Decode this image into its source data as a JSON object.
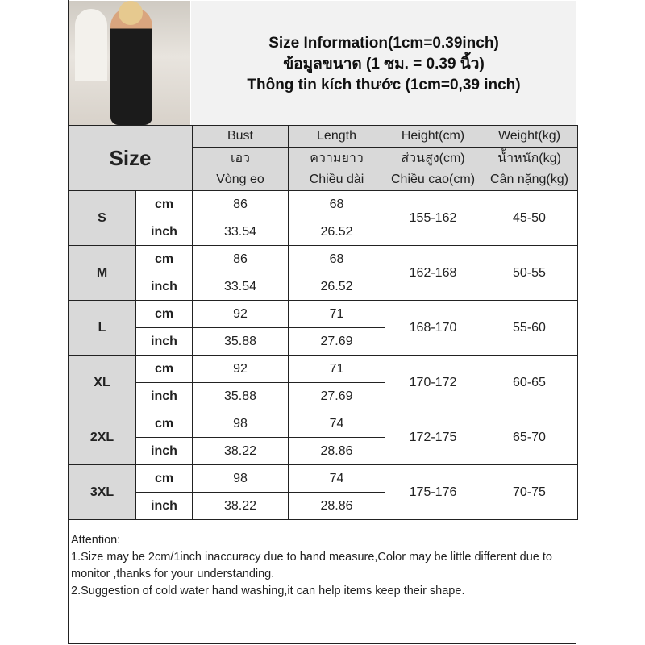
{
  "title": {
    "line1": "Size Information(1cm=0.39inch)",
    "line2": "ข้อมูลขนาด (1 ซม. = 0.39 นิ้ว)",
    "line3": "Thông tin kích thước (1cm=0,39 inch)"
  },
  "size_label": "Size",
  "headers": [
    [
      "Bust",
      "เอว",
      "Vòng eo"
    ],
    [
      "Length",
      "ความยาว",
      "Chiều dài"
    ],
    [
      "Height(cm)",
      "ส่วนสูง(cm)",
      "Chiều cao(cm)"
    ],
    [
      "Weight(kg)",
      "น้ำหนัก(kg)",
      "Cân nặng(kg)"
    ]
  ],
  "units": {
    "cm": "cm",
    "inch": "inch"
  },
  "rows": [
    {
      "size": "S",
      "bust_cm": "86",
      "length_cm": "68",
      "bust_in": "33.54",
      "length_in": "26.52",
      "height": "155-162",
      "weight": "45-50"
    },
    {
      "size": "M",
      "bust_cm": "86",
      "length_cm": "68",
      "bust_in": "33.54",
      "length_in": "26.52",
      "height": "162-168",
      "weight": "50-55"
    },
    {
      "size": "L",
      "bust_cm": "92",
      "length_cm": "71",
      "bust_in": "35.88",
      "length_in": "27.69",
      "height": "168-170",
      "weight": "55-60"
    },
    {
      "size": "XL",
      "bust_cm": "92",
      "length_cm": "71",
      "bust_in": "35.88",
      "length_in": "27.69",
      "height": "170-172",
      "weight": "60-65"
    },
    {
      "size": "2XL",
      "bust_cm": "98",
      "length_cm": "74",
      "bust_in": "38.22",
      "length_in": "28.86",
      "height": "172-175",
      "weight": "65-70"
    },
    {
      "size": "3XL",
      "bust_cm": "98",
      "length_cm": "74",
      "bust_in": "38.22",
      "length_in": "28.86",
      "height": "175-176",
      "weight": "70-75"
    }
  ],
  "notes": {
    "heading": "Attention:",
    "n1": "1.Size may be 2cm/1inch inaccuracy due to hand measure,Color may be little different due to monitor ,thanks for your understanding.",
    "n2": "2.Suggestion of cold water hand washing,it can help items keep their shape."
  },
  "colors": {
    "header_bg": "#d9d9d9",
    "title_bg": "#f2f2f2",
    "border": "#222222"
  }
}
